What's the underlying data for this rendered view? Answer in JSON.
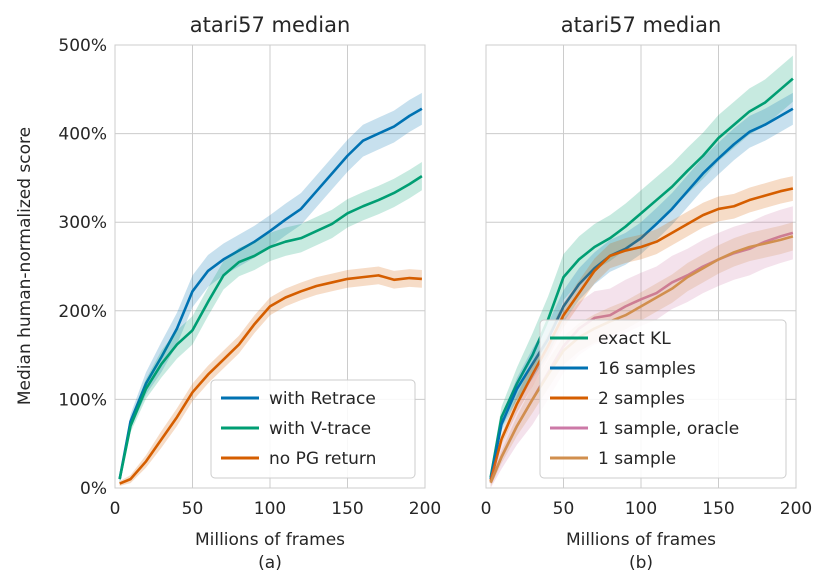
{
  "colors": {
    "retrace": "#0072b2",
    "vtrace": "#009e73",
    "nopg": "#d55e00",
    "pink": "#cc79a7",
    "tan": "#d18f4e"
  },
  "chart_data": [
    {
      "type": "line",
      "title": "atari57 median",
      "xlabel": "Millions of frames",
      "ylabel": "Median human-normalized score",
      "caption": "(a)",
      "xlim": [
        0,
        200
      ],
      "ylim": [
        0,
        500
      ],
      "xticks": [
        0,
        50,
        100,
        150,
        200
      ],
      "xtick_labels": [
        "0",
        "50",
        "100",
        "150",
        "200"
      ],
      "yticks": [
        0,
        100,
        200,
        300,
        400,
        500
      ],
      "ytick_labels": [
        "0%",
        "100%",
        "200%",
        "300%",
        "400%",
        "500%"
      ],
      "legend_position": "lower-right",
      "series": [
        {
          "name": "with Retrace",
          "color_key": "retrace",
          "band": 18,
          "x": [
            3,
            10,
            20,
            30,
            40,
            50,
            60,
            70,
            80,
            90,
            100,
            110,
            120,
            130,
            140,
            150,
            160,
            170,
            180,
            190,
            198
          ],
          "y": [
            10,
            75,
            118,
            148,
            180,
            222,
            245,
            258,
            268,
            278,
            290,
            303,
            315,
            335,
            355,
            375,
            392,
            400,
            408,
            420,
            428
          ]
        },
        {
          "name": "with V-trace",
          "color_key": "vtrace",
          "band": 16,
          "x": [
            3,
            10,
            20,
            30,
            40,
            50,
            60,
            70,
            80,
            90,
            100,
            110,
            120,
            130,
            140,
            150,
            160,
            170,
            180,
            190,
            198
          ],
          "y": [
            10,
            70,
            112,
            140,
            162,
            178,
            210,
            240,
            255,
            262,
            272,
            278,
            282,
            290,
            298,
            310,
            318,
            325,
            333,
            343,
            352
          ]
        },
        {
          "name": "no PG return",
          "color_key": "nopg",
          "band": 10,
          "x": [
            3,
            10,
            20,
            30,
            40,
            50,
            60,
            70,
            80,
            90,
            100,
            110,
            120,
            130,
            140,
            150,
            160,
            170,
            180,
            190,
            198
          ],
          "y": [
            5,
            10,
            30,
            55,
            80,
            108,
            128,
            145,
            162,
            185,
            205,
            215,
            222,
            228,
            232,
            236,
            238,
            240,
            235,
            237,
            236
          ]
        }
      ]
    },
    {
      "type": "line",
      "title": "atari57 median",
      "xlabel": "Millions of frames",
      "ylabel": "",
      "caption": "(b)",
      "xlim": [
        0,
        200
      ],
      "ylim": [
        0,
        500
      ],
      "xticks": [
        0,
        50,
        100,
        150,
        200
      ],
      "xtick_labels": [
        "0",
        "50",
        "100",
        "150",
        "200"
      ],
      "legend_position": "lower-right",
      "series": [
        {
          "name": "exact KL",
          "color_key": "vtrace",
          "band": 26,
          "x": [
            3,
            10,
            20,
            30,
            40,
            50,
            60,
            70,
            80,
            90,
            100,
            110,
            120,
            130,
            140,
            150,
            160,
            170,
            180,
            190,
            198
          ],
          "y": [
            12,
            80,
            118,
            150,
            190,
            238,
            258,
            272,
            282,
            295,
            310,
            325,
            340,
            358,
            375,
            395,
            410,
            425,
            435,
            450,
            462
          ]
        },
        {
          "name": "16 samples",
          "color_key": "retrace",
          "band": 18,
          "x": [
            3,
            10,
            20,
            30,
            40,
            50,
            60,
            70,
            80,
            90,
            100,
            110,
            120,
            130,
            140,
            150,
            160,
            170,
            180,
            190,
            198
          ],
          "y": [
            10,
            72,
            112,
            140,
            168,
            205,
            230,
            248,
            262,
            270,
            282,
            298,
            315,
            335,
            355,
            372,
            388,
            402,
            410,
            420,
            428
          ]
        },
        {
          "name": "2 samples",
          "color_key": "nopg",
          "band": 14,
          "x": [
            3,
            10,
            20,
            30,
            40,
            50,
            60,
            70,
            80,
            90,
            100,
            110,
            120,
            130,
            140,
            150,
            160,
            170,
            180,
            190,
            198
          ],
          "y": [
            8,
            55,
            95,
            128,
            160,
            195,
            220,
            245,
            262,
            268,
            272,
            278,
            288,
            298,
            308,
            315,
            318,
            325,
            330,
            335,
            338
          ]
        },
        {
          "name": "1 sample, oracle",
          "color_key": "pink",
          "band": 30,
          "x": [
            3,
            10,
            20,
            30,
            40,
            50,
            60,
            70,
            80,
            90,
            100,
            110,
            120,
            130,
            140,
            150,
            160,
            170,
            180,
            190,
            198
          ],
          "y": [
            6,
            35,
            70,
            100,
            130,
            160,
            180,
            192,
            195,
            205,
            213,
            220,
            232,
            240,
            250,
            258,
            265,
            270,
            278,
            284,
            288
          ]
        },
        {
          "name": "1 sample",
          "color_key": "tan",
          "band": 16,
          "x": [
            3,
            10,
            20,
            30,
            40,
            50,
            60,
            70,
            80,
            90,
            100,
            110,
            120,
            130,
            140,
            150,
            160,
            170,
            180,
            190,
            198
          ],
          "y": [
            6,
            35,
            70,
            100,
            128,
            155,
            170,
            180,
            188,
            195,
            205,
            215,
            225,
            238,
            248,
            258,
            266,
            272,
            276,
            280,
            284
          ]
        }
      ]
    }
  ]
}
